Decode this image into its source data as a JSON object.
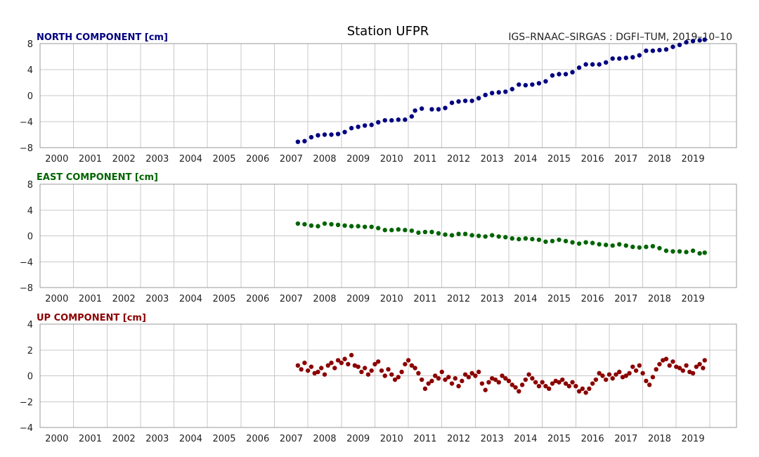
{
  "title": "Station UFPR",
  "subtitle": "IGS–RNAAC–SIRGAS : DGFI–TUM, 2019–10–10",
  "chart_data": [
    {
      "type": "scatter",
      "label": "NORTH COMPONENT [cm]",
      "color": "#000080",
      "xlim": [
        1999.5,
        2020.3
      ],
      "ylim": [
        -8,
        8
      ],
      "yticks": [
        -8,
        -4,
        0,
        4,
        8
      ],
      "ytick_labels": [
        "−8",
        "−4",
        "0",
        "4",
        "8"
      ],
      "xticks": [
        2000,
        2001,
        2002,
        2003,
        2004,
        2005,
        2006,
        2007,
        2008,
        2009,
        2010,
        2011,
        2012,
        2013,
        2014,
        2015,
        2016,
        2017,
        2018,
        2019
      ],
      "xtick_labels": [
        "2000",
        "2001",
        "2002",
        "2003",
        "2004",
        "2005",
        "2006",
        "2007",
        "2008",
        "2009",
        "2010",
        "2011",
        "2012",
        "2013",
        "2014",
        "2015",
        "2016",
        "2017",
        "2018",
        "2019"
      ],
      "grid": true,
      "points": [
        [
          2007.2,
          -7.1
        ],
        [
          2007.4,
          -7.0
        ],
        [
          2007.6,
          -6.4
        ],
        [
          2007.8,
          -6.1
        ],
        [
          2008.0,
          -6.0
        ],
        [
          2008.2,
          -6.0
        ],
        [
          2008.4,
          -5.9
        ],
        [
          2008.6,
          -5.6
        ],
        [
          2008.8,
          -5.0
        ],
        [
          2009.0,
          -4.8
        ],
        [
          2009.2,
          -4.6
        ],
        [
          2009.4,
          -4.5
        ],
        [
          2009.6,
          -4.1
        ],
        [
          2009.8,
          -3.8
        ],
        [
          2010.0,
          -3.8
        ],
        [
          2010.2,
          -3.7
        ],
        [
          2010.4,
          -3.7
        ],
        [
          2010.6,
          -3.2
        ],
        [
          2010.7,
          -2.3
        ],
        [
          2010.9,
          -2.0
        ],
        [
          2011.2,
          -2.1
        ],
        [
          2011.4,
          -2.1
        ],
        [
          2011.6,
          -1.9
        ],
        [
          2011.8,
          -1.1
        ],
        [
          2012.0,
          -0.9
        ],
        [
          2012.2,
          -0.8
        ],
        [
          2012.4,
          -0.8
        ],
        [
          2012.6,
          -0.4
        ],
        [
          2012.8,
          0.1
        ],
        [
          2013.0,
          0.4
        ],
        [
          2013.2,
          0.5
        ],
        [
          2013.4,
          0.6
        ],
        [
          2013.6,
          1.0
        ],
        [
          2013.8,
          1.7
        ],
        [
          2014.0,
          1.6
        ],
        [
          2014.2,
          1.7
        ],
        [
          2014.4,
          1.9
        ],
        [
          2014.6,
          2.2
        ],
        [
          2014.8,
          3.1
        ],
        [
          2015.0,
          3.3
        ],
        [
          2015.2,
          3.3
        ],
        [
          2015.4,
          3.6
        ],
        [
          2015.6,
          4.3
        ],
        [
          2015.8,
          4.8
        ],
        [
          2016.0,
          4.8
        ],
        [
          2016.2,
          4.8
        ],
        [
          2016.4,
          5.1
        ],
        [
          2016.6,
          5.7
        ],
        [
          2016.8,
          5.7
        ],
        [
          2017.0,
          5.8
        ],
        [
          2017.2,
          5.9
        ],
        [
          2017.4,
          6.2
        ],
        [
          2017.6,
          6.9
        ],
        [
          2017.8,
          6.9
        ],
        [
          2018.0,
          7.0
        ],
        [
          2018.2,
          7.1
        ],
        [
          2018.4,
          7.5
        ],
        [
          2018.6,
          7.8
        ],
        [
          2018.8,
          8.2
        ],
        [
          2019.0,
          8.4
        ],
        [
          2019.2,
          8.5
        ],
        [
          2019.35,
          8.6
        ]
      ]
    },
    {
      "type": "scatter",
      "label": "EAST COMPONENT [cm]",
      "color": "#006400",
      "xlim": [
        1999.5,
        2020.3
      ],
      "ylim": [
        -8,
        8
      ],
      "yticks": [
        -8,
        -4,
        0,
        4,
        8
      ],
      "ytick_labels": [
        "−8",
        "−4",
        "0",
        "4",
        "8"
      ],
      "xticks": [
        2000,
        2001,
        2002,
        2003,
        2004,
        2005,
        2006,
        2007,
        2008,
        2009,
        2010,
        2011,
        2012,
        2013,
        2014,
        2015,
        2016,
        2017,
        2018,
        2019
      ],
      "xtick_labels": [
        "2000",
        "2001",
        "2002",
        "2003",
        "2004",
        "2005",
        "2006",
        "2007",
        "2008",
        "2009",
        "2010",
        "2011",
        "2012",
        "2013",
        "2014",
        "2015",
        "2016",
        "2017",
        "2018",
        "2019"
      ],
      "grid": true,
      "points": [
        [
          2007.2,
          1.9
        ],
        [
          2007.4,
          1.8
        ],
        [
          2007.6,
          1.6
        ],
        [
          2007.8,
          1.5
        ],
        [
          2008.0,
          1.9
        ],
        [
          2008.2,
          1.8
        ],
        [
          2008.4,
          1.7
        ],
        [
          2008.6,
          1.6
        ],
        [
          2008.8,
          1.5
        ],
        [
          2009.0,
          1.5
        ],
        [
          2009.2,
          1.4
        ],
        [
          2009.4,
          1.4
        ],
        [
          2009.6,
          1.2
        ],
        [
          2009.8,
          0.9
        ],
        [
          2010.0,
          0.9
        ],
        [
          2010.2,
          1.0
        ],
        [
          2010.4,
          0.9
        ],
        [
          2010.6,
          0.8
        ],
        [
          2010.8,
          0.5
        ],
        [
          2011.0,
          0.6
        ],
        [
          2011.2,
          0.6
        ],
        [
          2011.4,
          0.4
        ],
        [
          2011.6,
          0.2
        ],
        [
          2011.8,
          0.1
        ],
        [
          2012.0,
          0.3
        ],
        [
          2012.2,
          0.3
        ],
        [
          2012.4,
          0.1
        ],
        [
          2012.6,
          0.0
        ],
        [
          2012.8,
          -0.1
        ],
        [
          2013.0,
          0.1
        ],
        [
          2013.2,
          -0.1
        ],
        [
          2013.4,
          -0.2
        ],
        [
          2013.6,
          -0.4
        ],
        [
          2013.8,
          -0.5
        ],
        [
          2014.0,
          -0.4
        ],
        [
          2014.2,
          -0.5
        ],
        [
          2014.4,
          -0.6
        ],
        [
          2014.6,
          -0.9
        ],
        [
          2014.8,
          -0.8
        ],
        [
          2015.0,
          -0.6
        ],
        [
          2015.2,
          -0.8
        ],
        [
          2015.4,
          -1.0
        ],
        [
          2015.6,
          -1.2
        ],
        [
          2015.8,
          -1.0
        ],
        [
          2016.0,
          -1.1
        ],
        [
          2016.2,
          -1.3
        ],
        [
          2016.4,
          -1.4
        ],
        [
          2016.6,
          -1.5
        ],
        [
          2016.8,
          -1.3
        ],
        [
          2017.0,
          -1.5
        ],
        [
          2017.2,
          -1.7
        ],
        [
          2017.4,
          -1.8
        ],
        [
          2017.6,
          -1.7
        ],
        [
          2017.8,
          -1.6
        ],
        [
          2018.0,
          -1.9
        ],
        [
          2018.2,
          -2.3
        ],
        [
          2018.4,
          -2.4
        ],
        [
          2018.6,
          -2.4
        ],
        [
          2018.8,
          -2.5
        ],
        [
          2019.0,
          -2.3
        ],
        [
          2019.2,
          -2.7
        ],
        [
          2019.35,
          -2.6
        ]
      ]
    },
    {
      "type": "scatter",
      "label": "UP COMPONENT [cm]",
      "color": "#8b0000",
      "xlim": [
        1999.5,
        2020.3
      ],
      "ylim": [
        -4,
        4
      ],
      "yticks": [
        -4,
        -2,
        0,
        2,
        4
      ],
      "ytick_labels": [
        "−4",
        "−2",
        "0",
        "2",
        "4"
      ],
      "xticks": [
        2000,
        2001,
        2002,
        2003,
        2004,
        2005,
        2006,
        2007,
        2008,
        2009,
        2010,
        2011,
        2012,
        2013,
        2014,
        2015,
        2016,
        2017,
        2018,
        2019
      ],
      "xtick_labels": [
        "2000",
        "2001",
        "2002",
        "2003",
        "2004",
        "2005",
        "2006",
        "2007",
        "2008",
        "2009",
        "2010",
        "2011",
        "2012",
        "2013",
        "2014",
        "2015",
        "2016",
        "2017",
        "2018",
        "2019"
      ],
      "grid": true,
      "points": [
        [
          2007.2,
          0.8
        ],
        [
          2007.3,
          0.5
        ],
        [
          2007.4,
          1.0
        ],
        [
          2007.5,
          0.4
        ],
        [
          2007.6,
          0.7
        ],
        [
          2007.7,
          0.2
        ],
        [
          2007.8,
          0.3
        ],
        [
          2007.9,
          0.6
        ],
        [
          2008.0,
          0.1
        ],
        [
          2008.1,
          0.8
        ],
        [
          2008.2,
          1.0
        ],
        [
          2008.3,
          0.6
        ],
        [
          2008.4,
          1.2
        ],
        [
          2008.5,
          1.0
        ],
        [
          2008.6,
          1.3
        ],
        [
          2008.7,
          0.9
        ],
        [
          2008.8,
          1.6
        ],
        [
          2008.9,
          0.8
        ],
        [
          2009.0,
          0.7
        ],
        [
          2009.1,
          0.3
        ],
        [
          2009.2,
          0.6
        ],
        [
          2009.3,
          0.1
        ],
        [
          2009.4,
          0.4
        ],
        [
          2009.5,
          0.9
        ],
        [
          2009.6,
          1.1
        ],
        [
          2009.7,
          0.4
        ],
        [
          2009.8,
          0.0
        ],
        [
          2009.9,
          0.5
        ],
        [
          2010.0,
          0.1
        ],
        [
          2010.1,
          -0.3
        ],
        [
          2010.2,
          -0.1
        ],
        [
          2010.3,
          0.3
        ],
        [
          2010.4,
          0.9
        ],
        [
          2010.5,
          1.2
        ],
        [
          2010.6,
          0.8
        ],
        [
          2010.7,
          0.6
        ],
        [
          2010.8,
          0.2
        ],
        [
          2010.9,
          -0.3
        ],
        [
          2011.0,
          -1.0
        ],
        [
          2011.1,
          -0.6
        ],
        [
          2011.2,
          -0.4
        ],
        [
          2011.3,
          0.0
        ],
        [
          2011.4,
          -0.2
        ],
        [
          2011.5,
          0.3
        ],
        [
          2011.6,
          -0.3
        ],
        [
          2011.7,
          -0.1
        ],
        [
          2011.8,
          -0.6
        ],
        [
          2011.9,
          -0.2
        ],
        [
          2012.0,
          -0.8
        ],
        [
          2012.1,
          -0.4
        ],
        [
          2012.2,
          0.1
        ],
        [
          2012.3,
          -0.1
        ],
        [
          2012.4,
          0.2
        ],
        [
          2012.5,
          0.0
        ],
        [
          2012.6,
          0.3
        ],
        [
          2012.7,
          -0.6
        ],
        [
          2012.8,
          -1.1
        ],
        [
          2012.9,
          -0.5
        ],
        [
          2013.0,
          -0.2
        ],
        [
          2013.1,
          -0.3
        ],
        [
          2013.2,
          -0.5
        ],
        [
          2013.3,
          0.0
        ],
        [
          2013.4,
          -0.2
        ],
        [
          2013.5,
          -0.4
        ],
        [
          2013.6,
          -0.7
        ],
        [
          2013.7,
          -0.9
        ],
        [
          2013.8,
          -1.2
        ],
        [
          2013.9,
          -0.7
        ],
        [
          2014.0,
          -0.3
        ],
        [
          2014.1,
          0.1
        ],
        [
          2014.2,
          -0.2
        ],
        [
          2014.3,
          -0.5
        ],
        [
          2014.4,
          -0.8
        ],
        [
          2014.5,
          -0.5
        ],
        [
          2014.6,
          -0.8
        ],
        [
          2014.7,
          -1.0
        ],
        [
          2014.8,
          -0.6
        ],
        [
          2014.9,
          -0.4
        ],
        [
          2015.0,
          -0.5
        ],
        [
          2015.1,
          -0.3
        ],
        [
          2015.2,
          -0.6
        ],
        [
          2015.3,
          -0.8
        ],
        [
          2015.4,
          -0.5
        ],
        [
          2015.5,
          -0.8
        ],
        [
          2015.6,
          -1.2
        ],
        [
          2015.7,
          -1.0
        ],
        [
          2015.8,
          -1.3
        ],
        [
          2015.9,
          -1.0
        ],
        [
          2016.0,
          -0.6
        ],
        [
          2016.1,
          -0.3
        ],
        [
          2016.2,
          0.2
        ],
        [
          2016.3,
          0.0
        ],
        [
          2016.4,
          -0.3
        ],
        [
          2016.5,
          0.1
        ],
        [
          2016.6,
          -0.2
        ],
        [
          2016.7,
          0.1
        ],
        [
          2016.8,
          0.3
        ],
        [
          2016.9,
          -0.1
        ],
        [
          2017.0,
          0.0
        ],
        [
          2017.1,
          0.2
        ],
        [
          2017.2,
          0.7
        ],
        [
          2017.3,
          0.4
        ],
        [
          2017.4,
          0.8
        ],
        [
          2017.5,
          0.2
        ],
        [
          2017.6,
          -0.4
        ],
        [
          2017.7,
          -0.7
        ],
        [
          2017.8,
          -0.1
        ],
        [
          2017.9,
          0.5
        ],
        [
          2018.0,
          0.9
        ],
        [
          2018.1,
          1.2
        ],
        [
          2018.2,
          1.3
        ],
        [
          2018.3,
          0.8
        ],
        [
          2018.4,
          1.1
        ],
        [
          2018.5,
          0.7
        ],
        [
          2018.6,
          0.6
        ],
        [
          2018.7,
          0.4
        ],
        [
          2018.8,
          0.8
        ],
        [
          2018.9,
          0.3
        ],
        [
          2019.0,
          0.2
        ],
        [
          2019.1,
          0.7
        ],
        [
          2019.2,
          0.9
        ],
        [
          2019.3,
          0.6
        ],
        [
          2019.35,
          1.2
        ]
      ]
    }
  ]
}
